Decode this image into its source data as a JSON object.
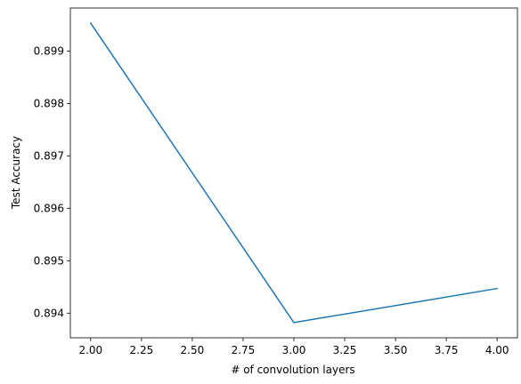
{
  "chart_data": {
    "type": "line",
    "title": "",
    "xlabel": "# of convolution layers",
    "ylabel": "Test Accuracy",
    "x": [
      2.0,
      3.0,
      4.0
    ],
    "series": [
      {
        "values": [
          0.89953,
          0.89382,
          0.89447
        ],
        "color": "#1f77b4"
      }
    ],
    "xlim": [
      1.9,
      4.1
    ],
    "ylim": [
      0.89353,
      0.89982
    ],
    "xticks": [
      2.0,
      2.25,
      2.5,
      2.75,
      3.0,
      3.25,
      3.5,
      3.75,
      4.0
    ],
    "xtick_labels": [
      "2.00",
      "2.25",
      "2.50",
      "2.75",
      "3.00",
      "3.25",
      "3.50",
      "3.75",
      "4.00"
    ],
    "yticks": [
      0.894,
      0.895,
      0.896,
      0.897,
      0.898,
      0.899
    ],
    "ytick_labels": [
      "0.894",
      "0.895",
      "0.896",
      "0.897",
      "0.898",
      "0.899"
    ],
    "grid": false,
    "legend": "none"
  }
}
